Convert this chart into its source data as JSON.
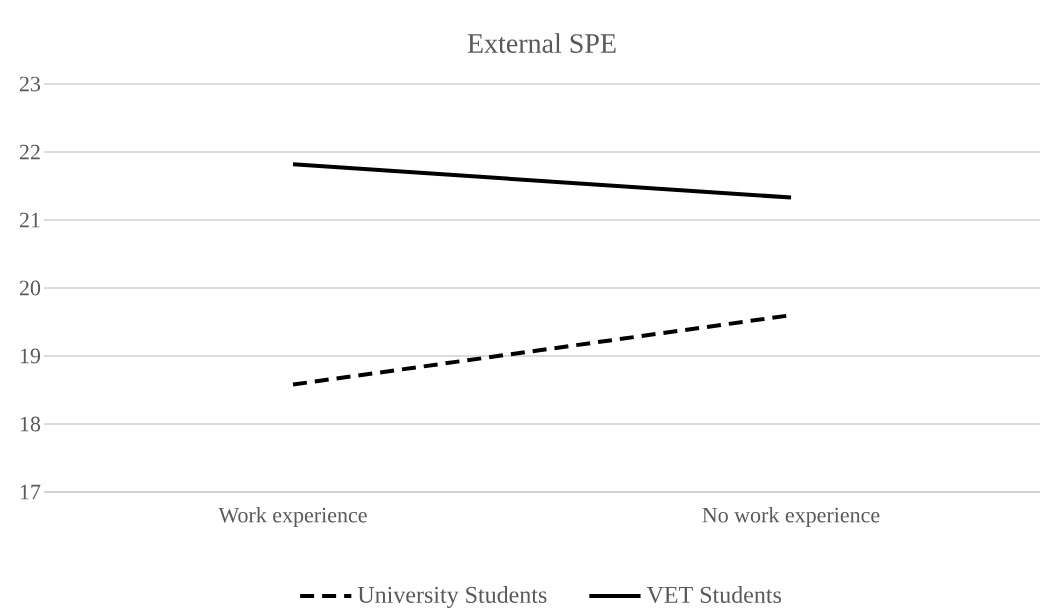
{
  "chart_data": {
    "type": "line",
    "title": "External SPE",
    "categories": [
      "Work experience",
      "No work experience"
    ],
    "series": [
      {
        "name": "University Students",
        "color": "#000000",
        "line_style": "dashed",
        "values": [
          18.58,
          19.6
        ]
      },
      {
        "name": "VET Students",
        "color": "#000000",
        "line_style": "solid",
        "values": [
          21.82,
          21.33
        ]
      }
    ],
    "ylim": [
      17,
      23
    ],
    "yticks": [
      17,
      18,
      19,
      20,
      21,
      22,
      23
    ],
    "grid": "y",
    "legend": "bottom",
    "marker": "none"
  }
}
